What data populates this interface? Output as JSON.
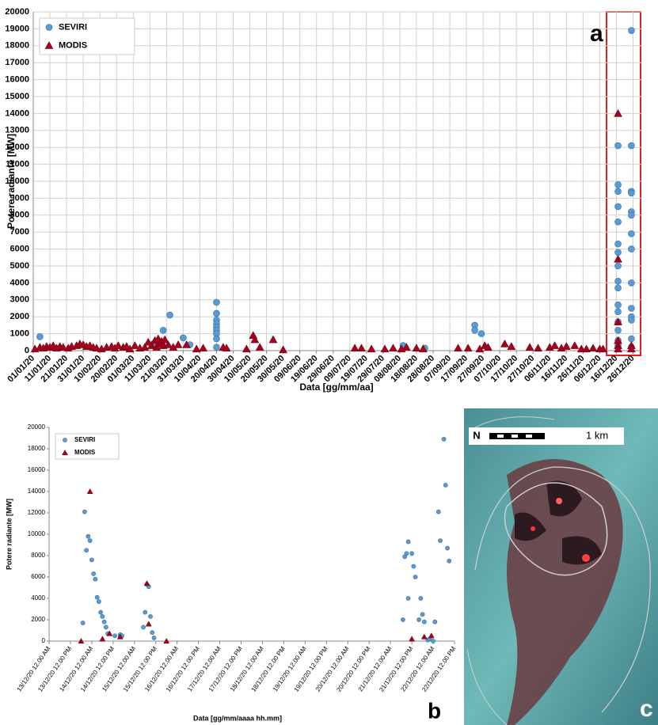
{
  "chart_data": [
    {
      "type": "scatter",
      "panel_label": "a",
      "x_label": "Data [gg/mm/aa]",
      "y_label": "Potere radiante [MW]",
      "xlim": [
        "01/01/20",
        "31/12/20"
      ],
      "xticks": [
        "01/01/20",
        "11/01/20",
        "21/01/20",
        "31/01/20",
        "10/02/20",
        "20/02/20",
        "01/03/20",
        "11/03/20",
        "21/03/20",
        "31/03/20",
        "10/04/20",
        "20/04/20",
        "30/04/20",
        "10/05/20",
        "20/05/20",
        "30/05/20",
        "09/06/20",
        "19/06/20",
        "29/06/20",
        "09/07/20",
        "19/07/20",
        "29/07/20",
        "08/08/20",
        "18/08/20",
        "28/08/20",
        "07/09/20",
        "17/09/20",
        "27/09/20",
        "07/10/20",
        "17/10/20",
        "27/10/20",
        "06/11/20",
        "16/11/20",
        "26/11/20",
        "06/12/20",
        "16/12/20",
        "26/12/20"
      ],
      "ylim": [
        0,
        20000
      ],
      "yticks": [
        0,
        1000,
        2000,
        3000,
        4000,
        5000,
        6000,
        7000,
        8000,
        9000,
        10000,
        11000,
        12000,
        13000,
        14000,
        15000,
        16000,
        17000,
        18000,
        19000,
        20000
      ],
      "grid": true,
      "legend": "upper left",
      "series": [
        {
          "name": "SEVIRI",
          "color": "#5b9bd5",
          "marker": "circle",
          "x": [
            "05/01/20",
            "13/03/20",
            "19/03/20",
            "23/03/20",
            "31/03/20",
            "04/04/20",
            "20/04/20",
            "20/04/20",
            "20/04/20",
            "20/04/20",
            "20/04/20",
            "20/04/20",
            "20/04/20",
            "20/04/20",
            "20/04/20",
            "10/08/20",
            "23/08/20",
            "22/09/20",
            "22/09/20",
            "26/09/20",
            "17/12/20",
            "17/12/20",
            "17/12/20",
            "17/12/20",
            "17/12/20",
            "17/12/20",
            "17/12/20",
            "17/12/20",
            "17/12/20",
            "17/12/20",
            "17/12/20",
            "17/12/20",
            "17/12/20",
            "17/12/20",
            "17/12/20",
            "17/12/20",
            "25/12/20",
            "25/12/20",
            "25/12/20",
            "25/12/20",
            "25/12/20",
            "25/12/20",
            "25/12/20",
            "25/12/20",
            "25/12/20",
            "25/12/20",
            "25/12/20",
            "25/12/20",
            "25/12/20",
            "25/12/20"
          ],
          "values": [
            820,
            400,
            1200,
            2100,
            750,
            350,
            2850,
            2200,
            1800,
            1600,
            1400,
            1200,
            1000,
            700,
            200,
            300,
            150,
            1500,
            1200,
            1000,
            12100,
            9800,
            9400,
            8500,
            7600,
            6300,
            5800,
            5000,
            4100,
            3700,
            2700,
            2300,
            1700,
            1200,
            600,
            300,
            18900,
            12100,
            9400,
            9300,
            8200,
            8000,
            6900,
            6000,
            4000,
            2500,
            2000,
            1800,
            700,
            200
          ]
        },
        {
          "name": "MODIS",
          "color": "#a50021",
          "marker": "triangle",
          "x": [
            "02/01/20",
            "05/01/20",
            "07/01/20",
            "09/01/20",
            "11/01/20",
            "13/01/20",
            "15/01/20",
            "17/01/20",
            "19/01/20",
            "22/01/20",
            "24/01/20",
            "27/01/20",
            "29/01/20",
            "31/01/20",
            "02/02/20",
            "04/02/20",
            "06/02/20",
            "08/02/20",
            "11/02/20",
            "14/02/20",
            "17/02/20",
            "19/02/20",
            "21/02/20",
            "24/02/20",
            "26/02/20",
            "28/02/20",
            "02/03/20",
            "05/03/20",
            "08/03/20",
            "10/03/20",
            "12/03/20",
            "14/03/20",
            "15/03/20",
            "16/03/20",
            "17/03/20",
            "18/03/20",
            "19/03/20",
            "20/03/20",
            "22/03/20",
            "25/03/20",
            "28/03/20",
            "02/04/20",
            "08/04/20",
            "12/04/20",
            "24/04/20",
            "26/04/20",
            "08/05/20",
            "12/05/20",
            "13/05/20",
            "16/05/20",
            "24/05/20",
            "30/05/20",
            "12/07/20",
            "16/07/20",
            "22/07/20",
            "30/07/20",
            "04/08/20",
            "09/08/20",
            "12/08/20",
            "18/08/20",
            "22/08/20",
            "12/09/20",
            "18/09/20",
            "25/09/20",
            "28/09/20",
            "30/09/20",
            "10/10/20",
            "14/10/20",
            "25/10/20",
            "30/10/20",
            "06/11/20",
            "09/11/20",
            "13/11/20",
            "16/11/20",
            "21/11/20",
            "25/11/20",
            "28/11/20",
            "02/12/20",
            "06/12/20",
            "08/12/20",
            "17/12/20",
            "17/12/20",
            "17/12/20",
            "17/12/20",
            "17/12/20",
            "17/12/20",
            "25/12/20",
            "25/12/20"
          ],
          "values": [
            100,
            200,
            150,
            250,
            200,
            300,
            150,
            250,
            200,
            150,
            250,
            300,
            400,
            350,
            250,
            300,
            200,
            150,
            100,
            200,
            250,
            150,
            300,
            200,
            250,
            100,
            300,
            150,
            200,
            500,
            300,
            600,
            200,
            700,
            400,
            550,
            300,
            650,
            350,
            200,
            350,
            350,
            100,
            150,
            200,
            150,
            100,
            900,
            650,
            200,
            650,
            50,
            150,
            150,
            100,
            100,
            150,
            100,
            200,
            150,
            100,
            150,
            150,
            100,
            300,
            200,
            400,
            250,
            200,
            150,
            200,
            300,
            150,
            250,
            300,
            100,
            100,
            150,
            100,
            100,
            14000,
            5400,
            1700,
            600,
            300,
            100,
            300,
            100
          ]
        }
      ]
    },
    {
      "type": "scatter",
      "panel_label": "b",
      "x_label": "Data [gg/mm/aaaa hh.mm]",
      "y_label": "Potere radiante [MW]",
      "xlim": [
        "13/12/20 12.00 AM",
        "22/12/20 12.00 PM"
      ],
      "xticks": [
        "13/12/20 12.00 AM",
        "13/12/20 12.00 PM",
        "14/12/20 12.00 AM",
        "14/12/20 12.00 PM",
        "15/12/20 12.00 AM",
        "15/12/20 12.00 PM",
        "16/12/20 12.00 AM",
        "16/12/20 12.00 PM",
        "17/12/20 12.00 AM",
        "17/12/20 12.00 PM",
        "18/12/20 12.00 AM",
        "18/12/20 12.00 PM",
        "19/12/20 12.00 AM",
        "19/12/20 12.00 PM",
        "20/12/20 12.00 AM",
        "20/12/20 12.00 PM",
        "21/12/20 12.00 AM",
        "21/12/20 12.00 PM",
        "22/12/20 12.00 AM",
        "22/12/20 12.00 PM"
      ],
      "ylim": [
        0,
        20000
      ],
      "yticks": [
        0,
        2000,
        4000,
        6000,
        8000,
        10000,
        12000,
        14000,
        16000,
        18000,
        20000
      ],
      "grid": false,
      "legend": "upper left",
      "series": [
        {
          "name": "SEVIRI",
          "color": "#5b9bd5",
          "marker": "circle",
          "x": [
            "13/12/20 7.00 PM",
            "13/12/20 8.00 PM",
            "13/12/20 10.00 PM",
            "13/12/20 9.00 PM",
            "13/12/20 11.00 PM",
            "14/12/20 12.00 AM",
            "14/12/20 1.00 AM",
            "14/12/20 2.00 AM",
            "14/12/20 3.00 AM",
            "14/12/20 4.00 AM",
            "14/12/20 5.00 AM",
            "14/12/20 6.00 AM",
            "14/12/20 7.00 AM",
            "14/12/20 8.00 AM",
            "14/12/20 9.00 AM",
            "14/12/20 1.00 PM",
            "14/12/20 4.00 PM",
            "14/12/20 4.00 PM",
            "14/12/20 5.00 PM",
            "15/12/20 6.00 AM",
            "15/12/20 5.00 AM",
            "15/12/20 7.00 AM",
            "15/12/20 8.00 AM",
            "15/12/20 9.00 AM",
            "15/12/20 10.00 AM",
            "15/12/20 11.00 AM",
            "21/12/20 7.00 AM",
            "21/12/20 8.00 AM",
            "21/12/20 9.00 AM",
            "21/12/20 10.00 AM",
            "21/12/20 10.00 AM",
            "21/12/20 12.00 PM",
            "21/12/20 1.00 PM",
            "21/12/20 2.00 PM",
            "21/12/20 4.00 PM",
            "21/12/20 5.00 PM",
            "21/12/20 6.00 PM",
            "21/12/20 7.00 PM",
            "21/12/20 9.00 PM",
            "21/12/20 10.00 PM",
            "22/12/20 12.00 AM",
            "22/12/20 1.00 AM",
            "22/12/20 3.00 AM",
            "22/12/20 4.00 AM",
            "22/12/20 6.00 AM",
            "22/12/20 7.00 AM",
            "22/12/20 8.00 AM",
            "22/12/20 9.00 AM"
          ],
          "values": [
            1700,
            12100,
            9800,
            8500,
            9400,
            7600,
            6300,
            5800,
            4100,
            3700,
            2700,
            2300,
            1800,
            1300,
            700,
            500,
            600,
            400,
            500,
            2700,
            1300,
            5300,
            5100,
            2300,
            800,
            300,
            2000,
            7900,
            8200,
            9300,
            4000,
            8200,
            7000,
            6000,
            2000,
            4000,
            2500,
            1800,
            100,
            200,
            0,
            1800,
            12100,
            9400,
            18900,
            14600,
            8700,
            7500
          ]
        },
        {
          "name": "MODIS",
          "color": "#a50021",
          "marker": "triangle",
          "x": [
            "13/12/20 6.00 PM",
            "13/12/20 11.00 PM",
            "14/12/20 6.00 AM",
            "14/12/20 10.00 AM",
            "14/12/20 4.00 PM",
            "15/12/20 7.00 AM",
            "15/12/20 8.00 AM",
            "15/12/20 6.00 PM",
            "21/12/20 12.00 PM",
            "21/12/20 7.00 PM",
            "21/12/20 11.00 PM"
          ],
          "values": [
            0,
            14000,
            200,
            700,
            400,
            5400,
            1600,
            0,
            200,
            400,
            500
          ]
        }
      ]
    }
  ],
  "image": {
    "scale_label": "1 km",
    "north_label": "N",
    "panel_label": "c"
  }
}
